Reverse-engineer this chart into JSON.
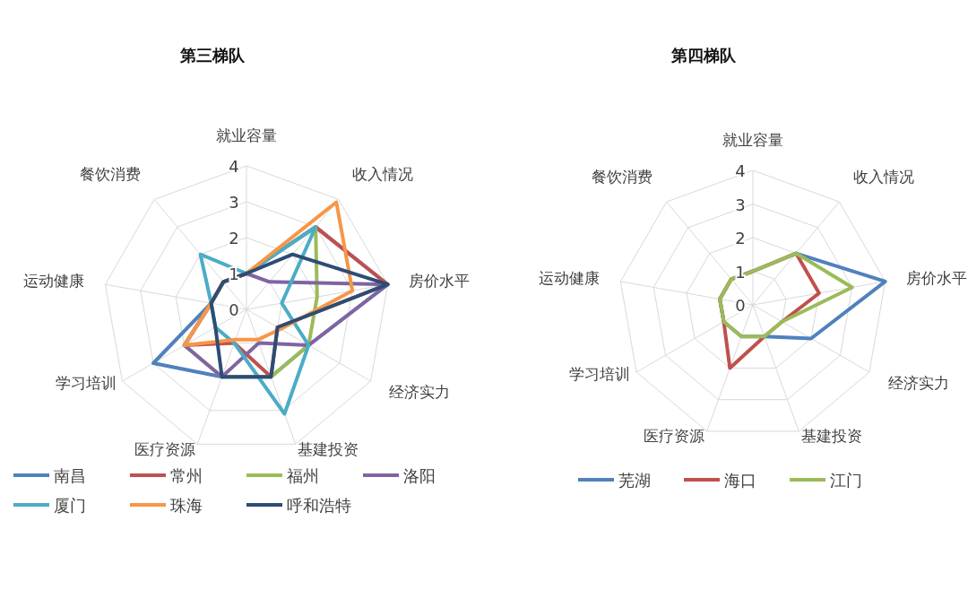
{
  "chart_data": [
    {
      "type": "radar",
      "title": "第三梯队",
      "categories": [
        "就业容量",
        "收入情况",
        "房价水平",
        "经济实力",
        "基建投资",
        "医疗资源",
        "学习培训",
        "运动健康",
        "餐饮消费"
      ],
      "ylim": [
        0,
        4
      ],
      "yticks": [
        0,
        1,
        2,
        3,
        4
      ],
      "grid": true,
      "legend": "bottom",
      "series": [
        {
          "name": "南昌",
          "color": "#4f81bd",
          "values": [
            1.0,
            3.0,
            4.0,
            2.0,
            2.0,
            2.0,
            3.0,
            1.0,
            1.0
          ]
        },
        {
          "name": "常州",
          "color": "#c0504d",
          "values": [
            1.0,
            3.0,
            4.0,
            1.0,
            2.0,
            1.0,
            2.0,
            1.0,
            1.0
          ]
        },
        {
          "name": "福州",
          "color": "#9bbb59",
          "values": [
            1.0,
            3.0,
            2.0,
            2.0,
            2.0,
            2.0,
            2.0,
            1.0,
            1.0
          ]
        },
        {
          "name": "洛阳",
          "color": "#8064a2",
          "values": [
            1.0,
            1.0,
            4.0,
            2.0,
            1.0,
            2.0,
            2.0,
            1.0,
            1.0
          ]
        },
        {
          "name": "厦门",
          "color": "#4bacc6",
          "values": [
            1.0,
            3.0,
            1.0,
            2.0,
            3.1,
            1.0,
            1.0,
            1.0,
            2.0
          ]
        },
        {
          "name": "珠海",
          "color": "#f79646",
          "values": [
            1.0,
            3.9,
            3.0,
            1.1,
            0.9,
            0.9,
            2.0,
            1.0,
            1.0
          ]
        },
        {
          "name": "呼和浩特",
          "color": "#2c4d75",
          "values": [
            1.0,
            2.0,
            4.0,
            1.0,
            2.0,
            2.0,
            1.0,
            1.0,
            1.0
          ]
        }
      ]
    },
    {
      "type": "radar",
      "title": "第四梯队",
      "categories": [
        "就业容量",
        "收入情况",
        "房价水平",
        "经济实力",
        "基建投资",
        "医疗资源",
        "学习培训",
        "运动健康",
        "餐饮消费"
      ],
      "ylim": [
        0,
        4
      ],
      "yticks": [
        0,
        1,
        2,
        3,
        4
      ],
      "grid": true,
      "legend": "bottom",
      "series": [
        {
          "name": "芜湖",
          "color": "#4f81bd",
          "values": [
            1.0,
            2.0,
            4.0,
            2.0,
            1.0,
            1.0,
            1.0,
            1.0,
            1.0
          ]
        },
        {
          "name": "海口",
          "color": "#c0504d",
          "values": [
            1.0,
            2.0,
            2.0,
            1.0,
            1.0,
            2.0,
            1.0,
            1.0,
            1.0
          ]
        },
        {
          "name": "江门",
          "color": "#9bbb59",
          "values": [
            1.0,
            2.0,
            3.0,
            1.0,
            1.0,
            1.0,
            1.0,
            1.0,
            1.0
          ]
        }
      ]
    }
  ]
}
